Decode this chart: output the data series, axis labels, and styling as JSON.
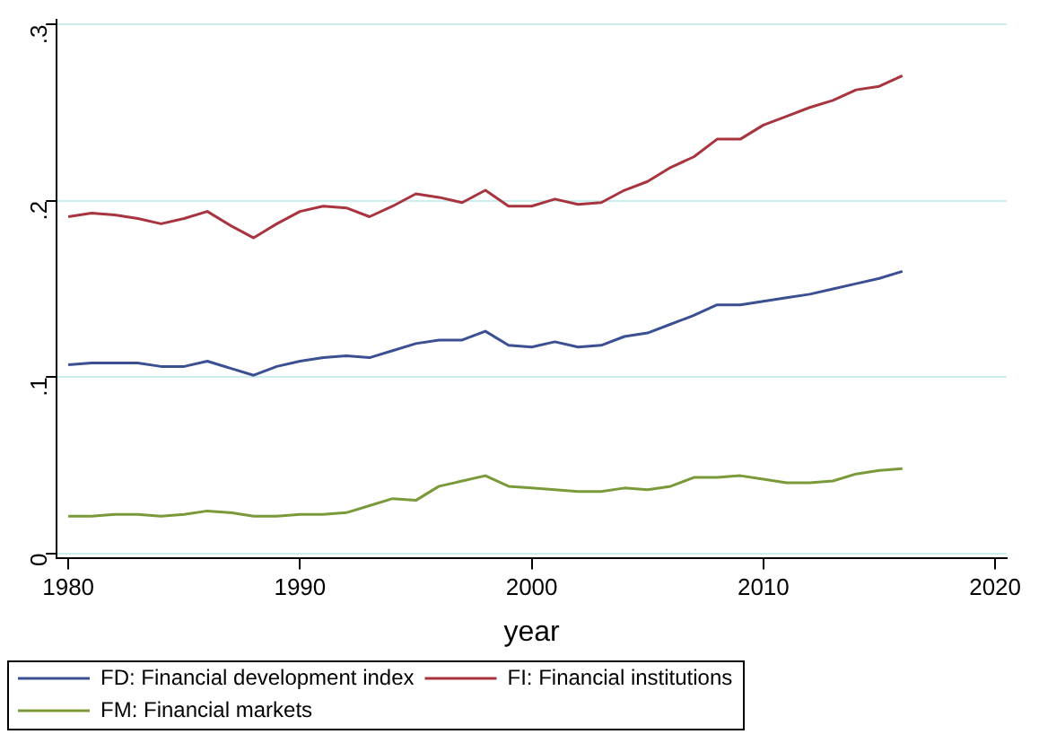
{
  "chart_data": {
    "type": "line",
    "xlabel": "year",
    "x": [
      1980,
      1981,
      1982,
      1983,
      1984,
      1985,
      1986,
      1987,
      1988,
      1989,
      1990,
      1991,
      1992,
      1993,
      1994,
      1995,
      1996,
      1997,
      1998,
      1999,
      2000,
      2001,
      2002,
      2003,
      2004,
      2005,
      2006,
      2007,
      2008,
      2009,
      2010,
      2011,
      2012,
      2013,
      2014,
      2015,
      2016
    ],
    "series": [
      {
        "name": "FD: Financial development index",
        "color": "#3b4f93",
        "values": [
          0.107,
          0.108,
          0.108,
          0.108,
          0.106,
          0.106,
          0.109,
          0.105,
          0.101,
          0.106,
          0.109,
          0.111,
          0.112,
          0.111,
          0.115,
          0.119,
          0.121,
          0.121,
          0.126,
          0.118,
          0.117,
          0.12,
          0.117,
          0.118,
          0.123,
          0.125,
          0.13,
          0.135,
          0.141,
          0.141,
          0.143,
          0.145,
          0.147,
          0.15,
          0.153,
          0.156,
          0.16
        ]
      },
      {
        "name": "FI: Financial institutions",
        "color": "#a8343f",
        "values": [
          0.191,
          0.193,
          0.192,
          0.19,
          0.187,
          0.19,
          0.194,
          0.186,
          0.179,
          0.187,
          0.194,
          0.197,
          0.196,
          0.191,
          0.197,
          0.204,
          0.202,
          0.199,
          0.206,
          0.197,
          0.197,
          0.201,
          0.198,
          0.199,
          0.206,
          0.211,
          0.219,
          0.225,
          0.235,
          0.235,
          0.243,
          0.248,
          0.253,
          0.257,
          0.263,
          0.265,
          0.271
        ]
      },
      {
        "name": "FM: Financial markets",
        "color": "#7a9a3a",
        "values": [
          0.021,
          0.021,
          0.022,
          0.022,
          0.021,
          0.022,
          0.024,
          0.023,
          0.021,
          0.021,
          0.022,
          0.022,
          0.023,
          0.027,
          0.031,
          0.03,
          0.038,
          0.041,
          0.044,
          0.038,
          0.037,
          0.036,
          0.035,
          0.035,
          0.037,
          0.036,
          0.038,
          0.043,
          0.043,
          0.044,
          0.042,
          0.04,
          0.04,
          0.041,
          0.045,
          0.047,
          0.048
        ]
      }
    ],
    "xlim": [
      1979.5,
      2020.5
    ],
    "xticks": [
      1980,
      1990,
      2000,
      2010,
      2020
    ],
    "ylim": [
      -0.003,
      0.303
    ],
    "yticks": [
      {
        "value": 0,
        "label": "0"
      },
      {
        "value": 0.1,
        "label": ".1"
      },
      {
        "value": 0.2,
        "label": ".2"
      },
      {
        "value": 0.3,
        "label": ".3"
      }
    ],
    "grid": "y",
    "legend": "bottom",
    "marker": "none",
    "line_style": "solid"
  }
}
